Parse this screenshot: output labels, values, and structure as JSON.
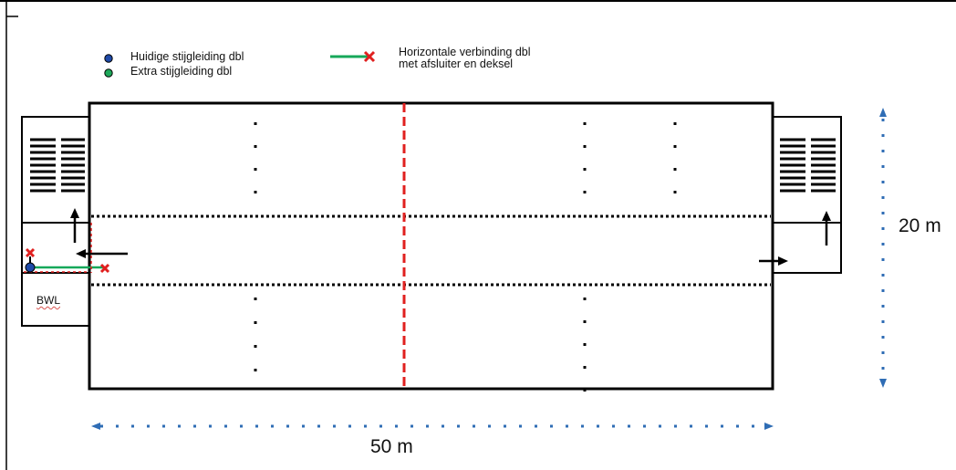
{
  "colors": {
    "outline": "#000000",
    "axis_dashed": "#e0201f",
    "dimension": "#2f6db5",
    "connection": "#16a85a",
    "cross": "#e0201f",
    "current_riser": "#1f4aa8",
    "extra_riser": "#1ea85a"
  },
  "legend": {
    "current_riser": "Huidige stijgleiding dbl",
    "extra_riser": "Extra stijgleiding dbl",
    "horizontal_line1": "Horizontale verbinding dbl",
    "horizontal_line2": "met afsluiter en deksel"
  },
  "labels": {
    "bwl": "BWL",
    "length": "50 m",
    "width": "20 m"
  },
  "icons": [
    "blue-dot-icon",
    "green-dot-icon",
    "green-line-red-cross-icon",
    "stairs-icon",
    "arrow-icon",
    "red-cross-icon"
  ]
}
